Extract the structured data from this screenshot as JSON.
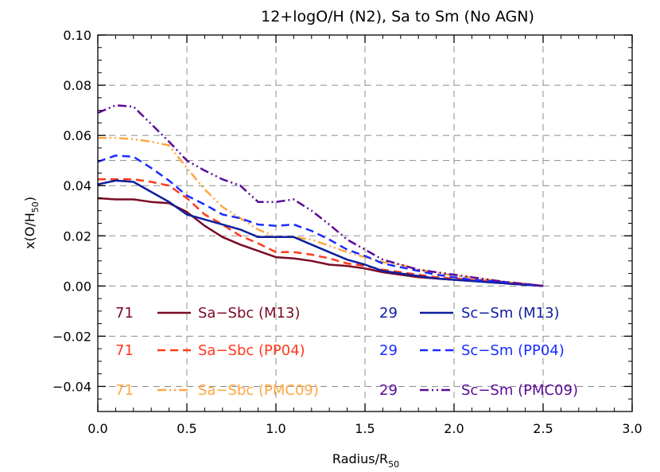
{
  "chart_data": {
    "type": "line",
    "title": "12+logO/H (N2), Sa to Sm (No AGN)",
    "xlabel": "Radius/R",
    "xlabel_sub": "50",
    "ylabel": "x(O/H",
    "ylabel_sub": "50",
    "ylabel_close": ")",
    "xlim": [
      0.0,
      3.0
    ],
    "ylim": [
      -0.05,
      0.1
    ],
    "xticks": [
      0.0,
      0.5,
      1.0,
      1.5,
      2.0,
      2.5,
      3.0
    ],
    "yticks": [
      -0.04,
      -0.02,
      0.0,
      0.02,
      0.04,
      0.06,
      0.08,
      0.1
    ],
    "xtick_labels": [
      "0.0",
      "0.5",
      "1.0",
      "1.5",
      "2.0",
      "2.5",
      "3.0"
    ],
    "ytick_labels": [
      "−0.04",
      "−0.02",
      "0.00",
      "0.02",
      "0.04",
      "0.06",
      "0.08",
      "0.10"
    ],
    "grid": "dashed",
    "legend_location": "lower",
    "series": [
      {
        "name": "Sa−Sbc (M13)",
        "count": "71",
        "color": "#7b0a24",
        "dash": "solid",
        "width": 2.5,
        "x": [
          0.0,
          0.1,
          0.2,
          0.3,
          0.4,
          0.5,
          0.6,
          0.7,
          0.8,
          0.9,
          1.0,
          1.1,
          1.2,
          1.3,
          1.4,
          1.5,
          1.6,
          1.7,
          1.8,
          1.9,
          2.0,
          2.1,
          2.2,
          2.3,
          2.4,
          2.5
        ],
        "values": [
          0.035,
          0.0345,
          0.0345,
          0.0335,
          0.033,
          0.0295,
          0.024,
          0.0195,
          0.0165,
          0.014,
          0.0115,
          0.011,
          0.01,
          0.0085,
          0.008,
          0.007,
          0.0055,
          0.0045,
          0.0035,
          0.003,
          0.0025,
          0.002,
          0.0015,
          0.001,
          0.0005,
          0.0
        ]
      },
      {
        "name": "Sa−Sbc (PP04)",
        "count": "71",
        "color": "#ff3a1a",
        "dash": "dashed",
        "width": 2.5,
        "x": [
          0.0,
          0.1,
          0.2,
          0.3,
          0.4,
          0.5,
          0.6,
          0.7,
          0.8,
          0.9,
          1.0,
          1.1,
          1.2,
          1.3,
          1.4,
          1.5,
          1.6,
          1.7,
          1.8,
          1.9,
          2.0,
          2.1,
          2.2,
          2.3,
          2.4,
          2.5
        ],
        "values": [
          0.0425,
          0.0425,
          0.0425,
          0.0415,
          0.04,
          0.035,
          0.0285,
          0.0245,
          0.02,
          0.017,
          0.0135,
          0.0135,
          0.0125,
          0.011,
          0.009,
          0.008,
          0.0065,
          0.0055,
          0.0045,
          0.0035,
          0.003,
          0.0025,
          0.002,
          0.0015,
          0.0008,
          0.0
        ]
      },
      {
        "name": "Sa−Sbc (PMC09)",
        "count": "71",
        "color": "#ffa640",
        "dash": "dashdotdot",
        "width": 2.5,
        "x": [
          0.0,
          0.1,
          0.2,
          0.3,
          0.4,
          0.5,
          0.6,
          0.7,
          0.8,
          0.9,
          1.0,
          1.1,
          1.2,
          1.3,
          1.4,
          1.5,
          1.6,
          1.7,
          1.8,
          1.9,
          2.0,
          2.1,
          2.2,
          2.3,
          2.4,
          2.5
        ],
        "values": [
          0.059,
          0.059,
          0.0585,
          0.0575,
          0.056,
          0.047,
          0.0385,
          0.0315,
          0.027,
          0.0225,
          0.0195,
          0.0195,
          0.0185,
          0.016,
          0.0135,
          0.0115,
          0.0095,
          0.0085,
          0.0065,
          0.0055,
          0.004,
          0.0035,
          0.0025,
          0.0015,
          0.001,
          0.0
        ]
      },
      {
        "name": "Sc−Sm (M13)",
        "count": "29",
        "color": "#0d1f9e",
        "dash": "solid",
        "width": 2.5,
        "x": [
          0.0,
          0.1,
          0.2,
          0.3,
          0.4,
          0.5,
          0.6,
          0.7,
          0.8,
          0.9,
          1.0,
          1.1,
          1.2,
          1.3,
          1.4,
          1.5,
          1.6,
          1.7,
          1.8,
          1.9,
          2.0,
          2.1,
          2.2,
          2.3,
          2.4,
          2.5
        ],
        "values": [
          0.0405,
          0.042,
          0.0415,
          0.0375,
          0.0335,
          0.0285,
          0.0265,
          0.0245,
          0.0225,
          0.0195,
          0.0195,
          0.0195,
          0.0165,
          0.0135,
          0.0105,
          0.0085,
          0.006,
          0.005,
          0.004,
          0.003,
          0.0025,
          0.002,
          0.0015,
          0.001,
          0.0005,
          0.0
        ]
      },
      {
        "name": "Sc−Sm (PP04)",
        "count": "29",
        "color": "#1a2cff",
        "dash": "dashed",
        "width": 2.5,
        "x": [
          0.0,
          0.1,
          0.2,
          0.3,
          0.4,
          0.5,
          0.6,
          0.7,
          0.8,
          0.9,
          1.0,
          1.1,
          1.2,
          1.3,
          1.4,
          1.5,
          1.6,
          1.7,
          1.8,
          1.9,
          2.0,
          2.1,
          2.2,
          2.3,
          2.4,
          2.5
        ],
        "values": [
          0.0495,
          0.052,
          0.0515,
          0.047,
          0.042,
          0.036,
          0.0325,
          0.0285,
          0.027,
          0.0245,
          0.024,
          0.0245,
          0.022,
          0.0185,
          0.0145,
          0.012,
          0.009,
          0.0075,
          0.006,
          0.0045,
          0.0035,
          0.0025,
          0.002,
          0.0015,
          0.0008,
          0.0
        ]
      },
      {
        "name": "Sc−Sm (PMC09)",
        "count": "29",
        "color": "#5b0a96",
        "dash": "dashdotdot",
        "width": 2.5,
        "x": [
          0.0,
          0.1,
          0.2,
          0.3,
          0.4,
          0.5,
          0.6,
          0.7,
          0.8,
          0.9,
          1.0,
          1.1,
          1.2,
          1.3,
          1.4,
          1.5,
          1.6,
          1.7,
          1.8,
          1.9,
          2.0,
          2.1,
          2.2,
          2.3,
          2.4,
          2.5
        ],
        "values": [
          0.069,
          0.072,
          0.0715,
          0.0645,
          0.0575,
          0.05,
          0.046,
          0.0425,
          0.04,
          0.0335,
          0.0335,
          0.0345,
          0.03,
          0.0245,
          0.0185,
          0.0145,
          0.0105,
          0.0085,
          0.0065,
          0.0055,
          0.0045,
          0.0035,
          0.0025,
          0.0015,
          0.0008,
          0.0
        ]
      }
    ]
  }
}
